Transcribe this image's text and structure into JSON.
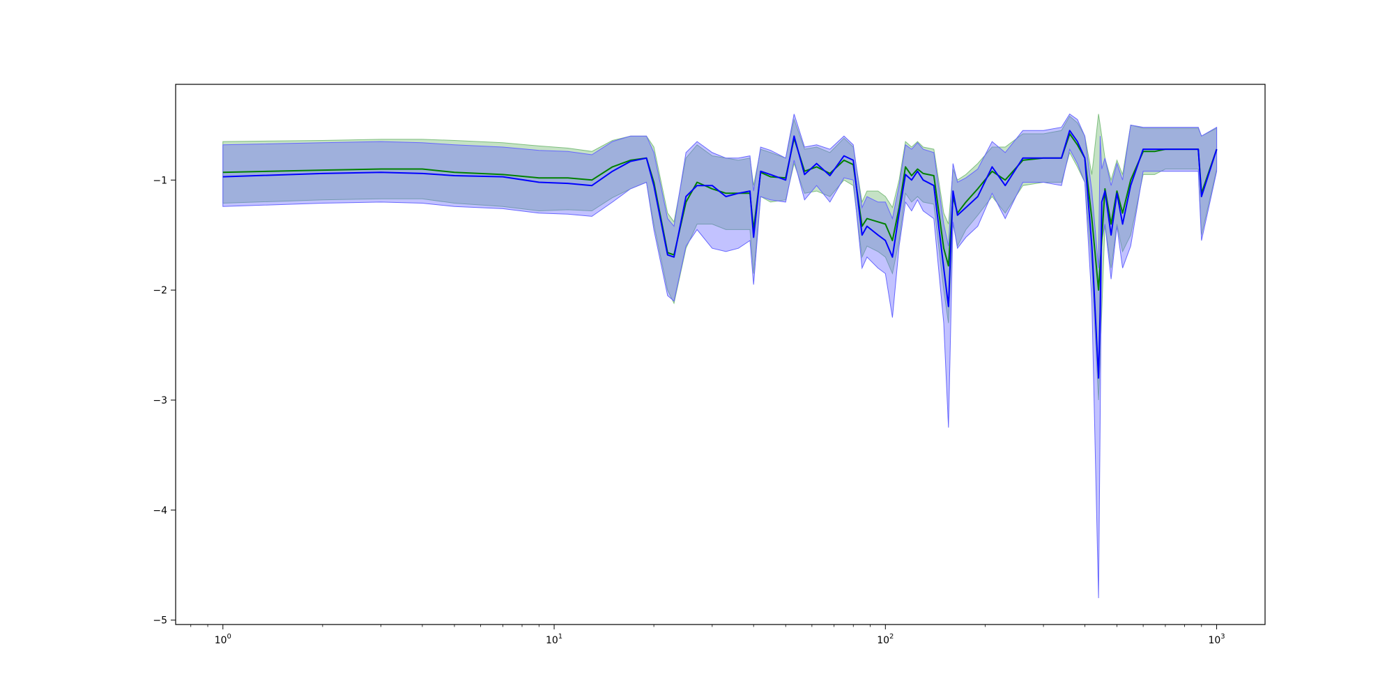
{
  "chart_data": {
    "type": "line",
    "title": "",
    "xlabel": "",
    "ylabel": "",
    "xscale": "log",
    "xlim": [
      0.72,
      1400
    ],
    "ylim": [
      -5.04,
      -0.13
    ],
    "grid": false,
    "legend": "none",
    "x_ticks": [
      {
        "base": "10",
        "exp": "0",
        "value": 1
      },
      {
        "base": "10",
        "exp": "1",
        "value": 10
      },
      {
        "base": "10",
        "exp": "2",
        "value": 100
      },
      {
        "base": "10",
        "exp": "3",
        "value": 1000
      }
    ],
    "y_ticks": [
      {
        "label": "−1",
        "value": -1
      },
      {
        "label": "−2",
        "value": -2
      },
      {
        "label": "−3",
        "value": -3
      },
      {
        "label": "−4",
        "value": -4
      },
      {
        "label": "−5",
        "value": -5
      }
    ],
    "series": [
      {
        "color": "#008000",
        "band_color": "#7fbf7f",
        "x": [
          1,
          2,
          3,
          4,
          5,
          7,
          9,
          11,
          13,
          15,
          17,
          19,
          20,
          22,
          23,
          25,
          27,
          30,
          33,
          36,
          39,
          40,
          42,
          45,
          50,
          53,
          57,
          62,
          68,
          75,
          80,
          85,
          88,
          95,
          100,
          105,
          110,
          115,
          120,
          125,
          130,
          140,
          150,
          155,
          160,
          165,
          175,
          190,
          210,
          230,
          260,
          300,
          340,
          360,
          380,
          400,
          420,
          440,
          460,
          480,
          500,
          520,
          550,
          600,
          650,
          700,
          800,
          880,
          900,
          1000
        ],
        "y": [
          -0.93,
          -0.91,
          -0.9,
          -0.9,
          -0.93,
          -0.95,
          -0.98,
          -0.98,
          -1.0,
          -0.88,
          -0.82,
          -0.8,
          -1.02,
          -1.66,
          -1.68,
          -1.2,
          -1.02,
          -1.08,
          -1.12,
          -1.12,
          -1.12,
          -1.45,
          -0.93,
          -0.97,
          -0.98,
          -0.62,
          -0.92,
          -0.88,
          -0.94,
          -0.82,
          -0.86,
          -1.42,
          -1.35,
          -1.38,
          -1.4,
          -1.55,
          -1.25,
          -0.88,
          -0.96,
          -0.9,
          -0.94,
          -0.96,
          -1.62,
          -1.78,
          -1.15,
          -1.3,
          -1.2,
          -1.08,
          -0.92,
          -1.0,
          -0.82,
          -0.8,
          -0.8,
          -0.58,
          -0.68,
          -0.8,
          -1.35,
          -2.0,
          -1.08,
          -1.4,
          -1.1,
          -1.3,
          -1.0,
          -0.74,
          -0.74,
          -0.72,
          -0.72,
          -0.72,
          -1.12,
          -0.72
        ],
        "upper": [
          -0.65,
          -0.64,
          -0.63,
          -0.63,
          -0.64,
          -0.66,
          -0.69,
          -0.71,
          -0.74,
          -0.64,
          -0.6,
          -0.6,
          -0.7,
          -1.3,
          -1.38,
          -0.8,
          -0.68,
          -0.78,
          -0.8,
          -0.82,
          -0.8,
          -1.05,
          -0.72,
          -0.75,
          -0.8,
          -0.45,
          -0.72,
          -0.7,
          -0.75,
          -0.62,
          -0.7,
          -1.2,
          -1.1,
          -1.1,
          -1.15,
          -1.25,
          -1.0,
          -0.65,
          -0.7,
          -0.65,
          -0.7,
          -0.72,
          -1.3,
          -1.4,
          -0.9,
          -1.0,
          -0.95,
          -0.85,
          -0.7,
          -0.7,
          -0.58,
          -0.58,
          -0.55,
          -0.42,
          -0.48,
          -0.6,
          -0.95,
          -0.4,
          -0.8,
          -1.0,
          -0.82,
          -0.95,
          -0.5,
          -0.53,
          -0.53,
          -0.53,
          -0.53,
          -0.53,
          -0.6,
          -0.53
        ],
        "lower": [
          -1.21,
          -1.18,
          -1.17,
          -1.17,
          -1.21,
          -1.24,
          -1.28,
          -1.27,
          -1.28,
          -1.16,
          -1.08,
          -1.02,
          -1.4,
          -2.0,
          -2.12,
          -1.62,
          -1.4,
          -1.4,
          -1.45,
          -1.45,
          -1.45,
          -1.85,
          -1.15,
          -1.2,
          -1.18,
          -0.85,
          -1.12,
          -1.1,
          -1.15,
          -1.0,
          -1.05,
          -1.7,
          -1.6,
          -1.65,
          -1.7,
          -1.85,
          -1.55,
          -1.12,
          -1.2,
          -1.15,
          -1.2,
          -1.22,
          -2.0,
          -2.3,
          -1.4,
          -1.6,
          -1.45,
          -1.32,
          -1.15,
          -1.3,
          -1.05,
          -1.02,
          -1.02,
          -0.75,
          -0.88,
          -1.02,
          -1.8,
          -3.0,
          -1.4,
          -1.8,
          -1.4,
          -1.65,
          -1.5,
          -0.95,
          -0.95,
          -0.9,
          -0.9,
          -0.9,
          -1.5,
          -0.9
        ]
      },
      {
        "color": "#0000ff",
        "band_color": "#6666ff",
        "x": [
          1,
          2,
          3,
          4,
          5,
          7,
          9,
          11,
          13,
          15,
          17,
          19,
          20,
          22,
          23,
          25,
          27,
          30,
          33,
          36,
          39,
          40,
          42,
          45,
          50,
          53,
          57,
          62,
          68,
          75,
          80,
          85,
          88,
          95,
          100,
          105,
          110,
          115,
          120,
          125,
          130,
          140,
          150,
          155,
          160,
          165,
          175,
          190,
          210,
          230,
          260,
          300,
          340,
          360,
          380,
          400,
          420,
          440,
          445,
          450,
          460,
          480,
          500,
          520,
          550,
          600,
          650,
          700,
          800,
          880,
          900,
          1000
        ],
        "y": [
          -0.97,
          -0.94,
          -0.93,
          -0.94,
          -0.96,
          -0.97,
          -1.02,
          -1.03,
          -1.05,
          -0.92,
          -0.83,
          -0.8,
          -1.05,
          -1.68,
          -1.7,
          -1.15,
          -1.05,
          -1.05,
          -1.15,
          -1.12,
          -1.1,
          -1.52,
          -0.92,
          -0.95,
          -1.0,
          -0.6,
          -0.95,
          -0.85,
          -0.96,
          -0.78,
          -0.82,
          -1.5,
          -1.42,
          -1.5,
          -1.55,
          -1.7,
          -1.3,
          -0.95,
          -1.0,
          -0.92,
          -1.0,
          -1.05,
          -1.8,
          -2.15,
          -1.1,
          -1.32,
          -1.25,
          -1.15,
          -0.88,
          -1.05,
          -0.8,
          -0.8,
          -0.8,
          -0.55,
          -0.65,
          -0.8,
          -1.6,
          -2.8,
          -2.2,
          -1.2,
          -1.1,
          -1.5,
          -1.12,
          -1.4,
          -1.05,
          -0.72,
          -0.72,
          -0.72,
          -0.72,
          -0.72,
          -1.15,
          -0.72
        ],
        "upper": [
          -0.68,
          -0.66,
          -0.65,
          -0.66,
          -0.68,
          -0.7,
          -0.73,
          -0.74,
          -0.77,
          -0.65,
          -0.6,
          -0.6,
          -0.75,
          -1.35,
          -1.42,
          -0.75,
          -0.65,
          -0.75,
          -0.8,
          -0.8,
          -0.78,
          -1.1,
          -0.7,
          -0.73,
          -0.8,
          -0.4,
          -0.7,
          -0.68,
          -0.72,
          -0.6,
          -0.68,
          -1.25,
          -1.15,
          -1.2,
          -1.2,
          -1.35,
          -1.05,
          -0.68,
          -0.72,
          -0.66,
          -0.72,
          -0.75,
          -1.4,
          -1.6,
          -0.85,
          -1.02,
          -0.98,
          -0.9,
          -0.65,
          -0.75,
          -0.55,
          -0.55,
          -0.52,
          -0.4,
          -0.45,
          -0.6,
          -1.1,
          -1.8,
          -0.6,
          -0.9,
          -0.8,
          -1.05,
          -0.85,
          -1.0,
          -0.5,
          -0.52,
          -0.52,
          -0.52,
          -0.52,
          -0.52,
          -0.6,
          -0.52
        ],
        "lower": [
          -1.24,
          -1.21,
          -1.2,
          -1.21,
          -1.24,
          -1.26,
          -1.3,
          -1.31,
          -1.33,
          -1.2,
          -1.08,
          -1.02,
          -1.45,
          -2.05,
          -2.1,
          -1.6,
          -1.45,
          -1.62,
          -1.65,
          -1.62,
          -1.55,
          -1.95,
          -1.15,
          -1.18,
          -1.2,
          -0.82,
          -1.18,
          -1.05,
          -1.2,
          -0.98,
          -1.0,
          -1.8,
          -1.7,
          -1.8,
          -1.85,
          -2.25,
          -1.6,
          -1.2,
          -1.28,
          -1.18,
          -1.28,
          -1.35,
          -2.3,
          -3.25,
          -1.38,
          -1.62,
          -1.52,
          -1.42,
          -1.12,
          -1.35,
          -1.02,
          -1.02,
          -1.05,
          -0.72,
          -0.85,
          -1.02,
          -2.1,
          -4.8,
          -3.2,
          -1.55,
          -1.4,
          -1.9,
          -1.42,
          -1.8,
          -1.6,
          -0.92,
          -0.92,
          -0.92,
          -0.92,
          -0.92,
          -1.55,
          -0.92
        ]
      }
    ]
  }
}
